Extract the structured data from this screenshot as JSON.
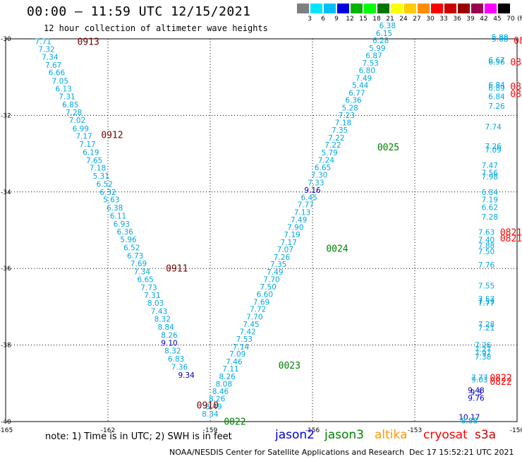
{
  "title": "00:00 – 11:59 UTC 12/15/2021",
  "subtitle": "12 hour collection of altimeter wave heights",
  "color_scale": {
    "labels": [
      "3",
      "6",
      "9",
      "12",
      "15",
      "18",
      "21",
      "24",
      "27",
      "30",
      "33",
      "36",
      "39",
      "42",
      "45",
      "70"
    ],
    "unit": "(ft)",
    "colors": [
      "#7f7f7f",
      "#00e5ff",
      "#00bfff",
      "#0000e0",
      "#00b400",
      "#00ff00",
      "#007800",
      "#ffff00",
      "#ffcc00",
      "#ff8c00",
      "#ff0000",
      "#cc0000",
      "#990000",
      "#9c0050",
      "#ff00ff",
      "#000000"
    ]
  },
  "axes": {
    "lon_ticks": [
      "-165",
      "-162",
      "-159",
      "-156",
      "-153",
      "-150"
    ],
    "lat_ticks": [
      "-30",
      "-32",
      "-34",
      "-36",
      "-38",
      "-40"
    ]
  },
  "tracks": [
    {
      "color": "#00a8e0",
      "points": [
        [
          "7.71",
          -163.9,
          -30.06
        ],
        [
          "7.32",
          -163.8,
          -30.27
        ],
        [
          "7.34",
          -163.7,
          -30.47
        ],
        [
          "7.67",
          -163.6,
          -30.68
        ],
        [
          "6.66",
          -163.5,
          -30.88
        ],
        [
          "7.05",
          -163.4,
          -31.1
        ],
        [
          "6.13",
          -163.3,
          -31.3
        ],
        [
          "7.31",
          -163.2,
          -31.5
        ],
        [
          "6.85",
          -163.1,
          -31.72
        ],
        [
          "7.28",
          -163.0,
          -31.92
        ],
        [
          "7.02",
          -162.9,
          -32.12
        ],
        [
          "6.99",
          -162.8,
          -32.34
        ],
        [
          "7.17",
          -162.7,
          -32.54
        ],
        [
          "7.17",
          -162.6,
          -32.75
        ],
        [
          "6.19",
          -162.5,
          -32.96
        ],
        [
          "7.65",
          -162.4,
          -33.17
        ],
        [
          "7.18",
          -162.3,
          -33.37
        ],
        [
          "5.31",
          -162.2,
          -33.58
        ],
        [
          "6.52",
          -162.1,
          -33.79
        ],
        [
          "6.32",
          -162.0,
          -34.0
        ],
        [
          "5.63",
          -161.9,
          -34.2
        ],
        [
          "6.38",
          -161.8,
          -34.41
        ],
        [
          "6.11",
          -161.7,
          -34.62
        ],
        [
          "6.93",
          -161.6,
          -34.83
        ],
        [
          "6.36",
          -161.5,
          -35.04
        ],
        [
          "5.96",
          -161.4,
          -35.24
        ],
        [
          "6.52",
          -161.3,
          -35.45
        ],
        [
          "6.73",
          -161.2,
          -35.66
        ],
        [
          "7.69",
          -161.1,
          -35.87
        ],
        [
          "7.34",
          -161.0,
          -36.08
        ],
        [
          "6.65",
          -160.9,
          -36.28
        ],
        [
          "7.73",
          -160.8,
          -36.49
        ],
        [
          "7.31",
          -160.7,
          -36.7
        ],
        [
          "8.03",
          -160.6,
          -36.9
        ],
        [
          "7.43",
          -160.5,
          -37.11
        ],
        [
          "8.32",
          -160.4,
          -37.32
        ],
        [
          "8.84",
          -160.3,
          -37.53
        ],
        [
          "8.26",
          -160.2,
          -37.74
        ],
        [
          "8.32",
          -160.1,
          -38.15
        ],
        [
          "6.83",
          -160.0,
          -38.36
        ],
        [
          "7.36",
          -159.9,
          -38.57
        ]
      ]
    },
    {
      "color": "#00a8e0",
      "points": [
        [
          "8.34",
          -159.0,
          -39.8
        ],
        [
          "8.49",
          -158.9,
          -39.6
        ],
        [
          "8.26",
          -158.8,
          -39.4
        ],
        [
          "8.46",
          -158.7,
          -39.21
        ],
        [
          "8.08",
          -158.6,
          -39.01
        ],
        [
          "8.26",
          -158.5,
          -38.82
        ],
        [
          "7.11",
          -158.4,
          -38.62
        ],
        [
          "7.46",
          -158.3,
          -38.43
        ],
        [
          "7.09",
          -158.2,
          -38.23
        ],
        [
          "7.14",
          -158.1,
          -38.04
        ],
        [
          "7.53",
          -158.0,
          -37.84
        ],
        [
          "7.42",
          -157.9,
          -37.65
        ],
        [
          "7.45",
          -157.8,
          -37.45
        ],
        [
          "7.70",
          -157.7,
          -37.26
        ],
        [
          "7.72",
          -157.6,
          -37.06
        ],
        [
          "7.69",
          -157.5,
          -36.87
        ],
        [
          "6.60",
          -157.4,
          -36.67
        ],
        [
          "7.50",
          -157.3,
          -36.48
        ],
        [
          "7.70",
          -157.2,
          -36.28
        ],
        [
          "7.49",
          -157.1,
          -36.09
        ],
        [
          "7.35",
          -157.0,
          -35.89
        ],
        [
          "7.26",
          -156.9,
          -35.7
        ],
        [
          "7.07",
          -156.8,
          -35.5
        ],
        [
          "7.17",
          -156.7,
          -35.31
        ],
        [
          "7.19",
          -156.6,
          -35.11
        ],
        [
          "7.90",
          -156.5,
          -34.92
        ],
        [
          "7.49",
          -156.4,
          -34.72
        ],
        [
          "7.13",
          -156.3,
          -34.53
        ],
        [
          "7.77",
          -156.2,
          -34.33
        ],
        [
          "6.45",
          -156.1,
          -34.14
        ],
        [
          "7.33",
          -155.9,
          -33.75
        ],
        [
          "7.30",
          -155.8,
          -33.55
        ],
        [
          "6.65",
          -155.7,
          -33.36
        ],
        [
          "7.24",
          -155.6,
          -33.16
        ],
        [
          "5.79",
          -155.5,
          -32.97
        ],
        [
          "7.22",
          -155.4,
          -32.77
        ],
        [
          "7.22",
          -155.3,
          -32.58
        ],
        [
          "7.35",
          -155.2,
          -32.38
        ],
        [
          "7.18",
          -155.1,
          -32.19
        ],
        [
          "7.23",
          -155.0,
          -31.99
        ],
        [
          "5.28",
          -154.9,
          -31.8
        ],
        [
          "6.36",
          -154.8,
          -31.6
        ],
        [
          "6.77",
          -154.7,
          -31.41
        ],
        [
          "5.44",
          -154.6,
          -31.21
        ],
        [
          "7.49",
          -154.5,
          -31.02
        ],
        [
          "6.80",
          -154.4,
          -30.82
        ],
        [
          "7.53",
          -154.3,
          -30.63
        ],
        [
          "6.87",
          -154.2,
          -30.43
        ],
        [
          "5.99",
          -154.1,
          -30.24
        ],
        [
          "6.28",
          -154.0,
          -30.04
        ],
        [
          "6.15",
          -153.9,
          -29.85
        ],
        [
          "6.38",
          -153.8,
          -29.65
        ]
      ]
    },
    {
      "color": "#00a8e0",
      "points": [
        [
          "5.88",
          -150.5,
          -29.95
        ],
        [
          "5.88",
          -150.5,
          -30.0
        ],
        [
          "6.67",
          -150.6,
          -30.55
        ],
        [
          "6.56",
          -150.6,
          -30.6
        ],
        [
          "6.84",
          -150.6,
          -31.2
        ],
        [
          "6.89",
          -150.6,
          -31.28
        ],
        [
          "6.84",
          -150.6,
          -31.5
        ],
        [
          "7.26",
          -150.6,
          -31.75
        ],
        [
          "7.74",
          -150.7,
          -32.3
        ],
        [
          "7.26",
          -150.7,
          -32.8
        ],
        [
          "7.09",
          -150.7,
          -32.9
        ],
        [
          "7.47",
          -150.8,
          -33.3
        ],
        [
          "7.56",
          -150.8,
          -33.5
        ],
        [
          "7.98",
          -150.8,
          -33.6
        ],
        [
          "6.84",
          -150.8,
          -34.0
        ],
        [
          "7.19",
          -150.8,
          -34.2
        ],
        [
          "6.62",
          -150.8,
          -34.4
        ],
        [
          "7.28",
          -150.8,
          -34.65
        ],
        [
          "7.63",
          -150.9,
          -35.05
        ],
        [
          "7.40",
          -150.9,
          -35.25
        ],
        [
          "7.88",
          -150.9,
          -35.4
        ],
        [
          "7.50",
          -150.9,
          -35.55
        ],
        [
          "7.76",
          -150.9,
          -35.9
        ],
        [
          "7.55",
          -150.9,
          -36.45
        ],
        [
          "7.57",
          -150.9,
          -36.8
        ],
        [
          "7.59",
          -150.9,
          -36.85
        ],
        [
          "7.77",
          -150.9,
          -36.9
        ],
        [
          "7.28",
          -150.9,
          -37.45
        ],
        [
          "7.21",
          -150.9,
          -37.55
        ],
        [
          "7.26",
          -151.0,
          -38.0
        ],
        [
          "7.27",
          -151.0,
          -38.1
        ],
        [
          "7.97",
          -151.0,
          -38.2
        ],
        [
          "7.38",
          -151.0,
          -38.3
        ],
        [
          "7.77",
          -151.1,
          -38.85
        ],
        [
          "9.03",
          -151.1,
          -38.9
        ]
      ]
    },
    {
      "color": "#0000c8",
      "points": [
        [
          "9.10",
          -160.2,
          -37.94
        ],
        [
          "9.34",
          -159.7,
          -38.78
        ],
        [
          "9.16",
          -156.0,
          -33.95
        ],
        [
          "9.48",
          -151.2,
          -39.18
        ],
        [
          "9.3",
          -151.2,
          -39.23
        ],
        [
          "9.76",
          -151.2,
          -39.38
        ],
        [
          "10.17",
          -151.4,
          -39.88
        ]
      ]
    },
    {
      "color": "#00a8e0",
      "points": [
        [
          "8.88",
          -151.4,
          -39.97
        ]
      ]
    }
  ],
  "time_labels": [
    {
      "text": "0913",
      "color": "#7a0000",
      "lon": -162.9,
      "lat": -30.06
    },
    {
      "text": "0912",
      "color": "#7a0000",
      "lon": -162.2,
      "lat": -32.5
    },
    {
      "text": "0911",
      "color": "#7a0000",
      "lon": -160.3,
      "lat": -35.99
    },
    {
      "text": "0910",
      "color": "#7a0000",
      "lon": -159.4,
      "lat": -39.57
    },
    {
      "text": "0022",
      "color": "#008000",
      "lon": -158.6,
      "lat": -39.99
    },
    {
      "text": "0023",
      "color": "#008000",
      "lon": -157.0,
      "lat": -38.52
    },
    {
      "text": "0024",
      "color": "#008000",
      "lon": -155.6,
      "lat": -35.47
    },
    {
      "text": "0025",
      "color": "#008000",
      "lon": -154.1,
      "lat": -32.82
    },
    {
      "text": "082",
      "color": "#ff0000",
      "lon": -150.1,
      "lat": -30.04
    },
    {
      "text": "08",
      "color": "#ff0000",
      "lon": -150.2,
      "lat": -30.6
    },
    {
      "text": "082",
      "color": "#ff0000",
      "lon": -150.2,
      "lat": -31.24
    },
    {
      "text": "082",
      "color": "#ff0000",
      "lon": -150.2,
      "lat": -31.43
    },
    {
      "text": "0821",
      "color": "#ff0000",
      "lon": -150.5,
      "lat": -35.05
    },
    {
      "text": "0821",
      "color": "#ff0000",
      "lon": -150.5,
      "lat": -35.2
    },
    {
      "text": "0822",
      "color": "#ff0000",
      "lon": -150.8,
      "lat": -38.85
    },
    {
      "text": "0822",
      "color": "#ff0000",
      "lon": -150.8,
      "lat": -38.95
    }
  ],
  "note": "note: 1) Time is in UTC; 2) SWH is in feet",
  "satellites": [
    {
      "name": "jason2",
      "color": "#0000e0"
    },
    {
      "name": "jason3",
      "color": "#008000"
    },
    {
      "name": "altika",
      "color": "#ff9900"
    },
    {
      "name": "cryosat",
      "color": "#ff0000"
    },
    {
      "name": "s3a",
      "color": "#cc0000"
    }
  ],
  "credit": "NOAA/NESDIS Center for Satellite Applications and Research",
  "timestamp": "Dec 17 15:52:21 UTC 2021"
}
